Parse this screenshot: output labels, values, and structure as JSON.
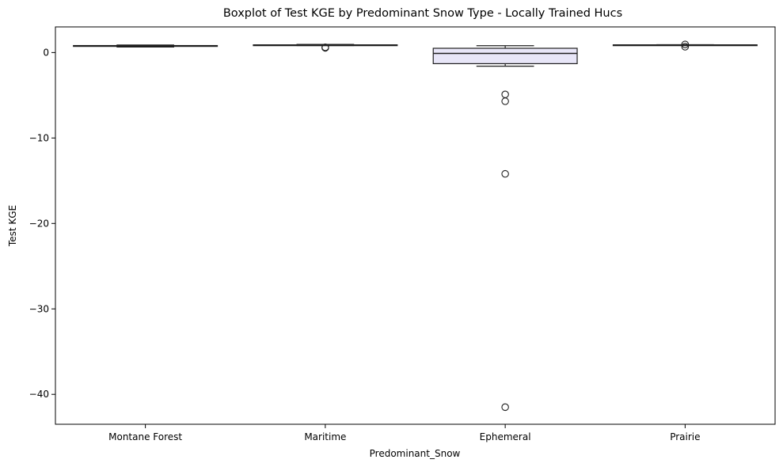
{
  "chart_data": {
    "type": "box",
    "title": "Boxplot of Test KGE by Predominant Snow Type - Locally Trained Hucs",
    "xlabel": "Predominant_Snow",
    "ylabel": "Test KGE",
    "ylim": [
      -43.5,
      3
    ],
    "yticks": [
      0,
      -10,
      -20,
      -30,
      -40
    ],
    "ytick_labels": [
      "0",
      "−10",
      "−20",
      "−30",
      "−40"
    ],
    "grid": false,
    "colors": {
      "box_fill": "#e8e6f8",
      "line": "#1f1f1f"
    },
    "categories": [
      "Montane Forest",
      "Maritime",
      "Ephemeral",
      "Prairie"
    ],
    "boxes": [
      {
        "category": "Montane Forest",
        "whisker_low": 0.65,
        "q1": 0.72,
        "median": 0.78,
        "q3": 0.82,
        "whisker_high": 0.88,
        "outliers": []
      },
      {
        "category": "Maritime",
        "whisker_low": 0.82,
        "q1": 0.85,
        "median": 0.88,
        "q3": 0.9,
        "whisker_high": 0.95,
        "outliers": [
          0.62,
          0.55
        ]
      },
      {
        "category": "Ephemeral",
        "whisker_low": -1.6,
        "q1": -1.3,
        "median": -0.1,
        "q3": 0.5,
        "whisker_high": 0.8,
        "outliers": [
          -4.9,
          -5.7,
          -14.2,
          -41.5
        ]
      },
      {
        "category": "Prairie",
        "whisker_low": 0.86,
        "q1": 0.88,
        "median": 0.89,
        "q3": 0.9,
        "whisker_high": 0.92,
        "outliers": [
          0.95,
          0.68
        ]
      }
    ]
  }
}
